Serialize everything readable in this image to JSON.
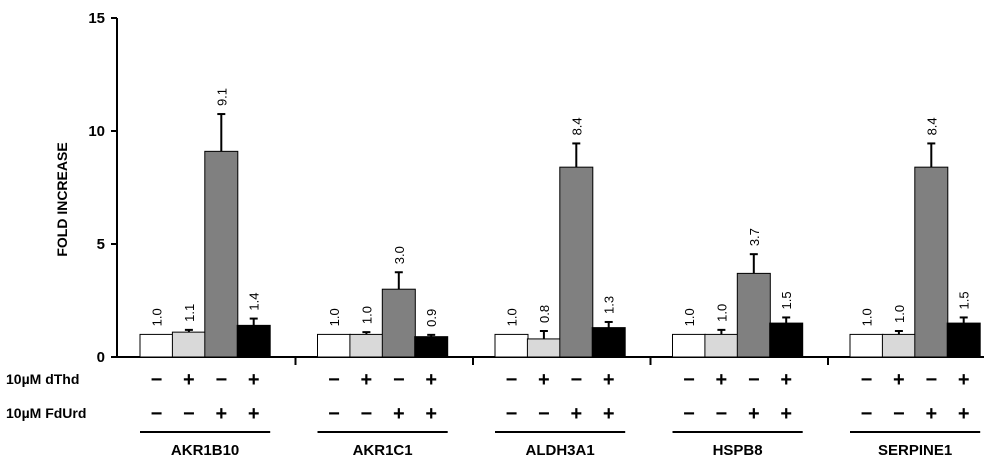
{
  "chart_data": {
    "type": "bar",
    "title": "",
    "xlabel": "",
    "ylabel": "FOLD INCREASE",
    "ylim": [
      0,
      15
    ],
    "yticks": [
      "0",
      "5",
      "10",
      "15"
    ],
    "grid": false,
    "categories": [
      "AKR1B10",
      "AKR1C1",
      "ALDH3A1",
      "HSPB8",
      "SERPINE1"
    ],
    "conditions": {
      "rows": [
        {
          "label": "10µM dThd",
          "signs": [
            "−",
            "+",
            "−",
            "+"
          ]
        },
        {
          "label": "10µM FdUrd",
          "signs": [
            "−",
            "−",
            "+",
            "+"
          ]
        }
      ]
    },
    "series": [
      {
        "color": "#ffffff",
        "values": [
          1.0,
          1.0,
          1.0,
          1.0,
          1.0
        ],
        "labels": [
          "1.0",
          "1.0",
          "1.0",
          "1.0",
          "1.0"
        ],
        "errors": [
          0,
          0,
          0,
          0,
          0
        ]
      },
      {
        "color": "#d9d9d9",
        "values": [
          1.1,
          1.0,
          0.8,
          1.0,
          1.0
        ],
        "labels": [
          "1.1",
          "1.0",
          "0.8",
          "1.0",
          "1.0"
        ],
        "errors": [
          0.1,
          0.1,
          0.35,
          0.2,
          0.15
        ]
      },
      {
        "color": "#808080",
        "values": [
          9.1,
          3.0,
          8.4,
          3.7,
          8.4
        ],
        "labels": [
          "9.1",
          "3.0",
          "8.4",
          "3.7",
          "8.4"
        ],
        "errors": [
          1.65,
          0.75,
          1.05,
          0.85,
          1.05
        ]
      },
      {
        "color": "#000000",
        "values": [
          1.4,
          0.9,
          1.3,
          1.5,
          1.5
        ],
        "labels": [
          "1.4",
          "0.9",
          "1.3",
          "1.5",
          "1.5"
        ],
        "errors": [
          0.3,
          0.08,
          0.25,
          0.25,
          0.25
        ]
      }
    ]
  }
}
